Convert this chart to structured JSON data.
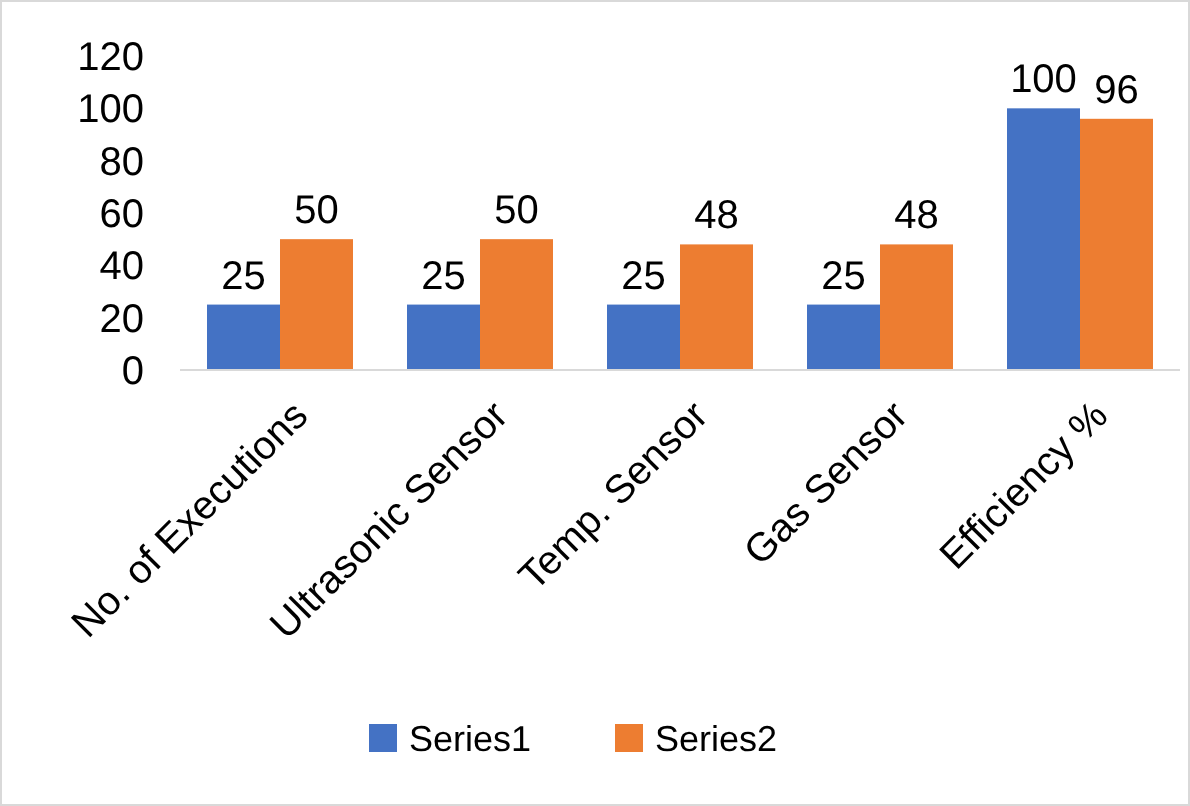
{
  "chart_data": {
    "type": "bar",
    "categories": [
      "No. of Executions",
      "Ultrasonic Sensor",
      "Temp. Sensor",
      "Gas Sensor",
      "Efficiency %"
    ],
    "series": [
      {
        "name": "Series1",
        "color": "#4472c4",
        "values": [
          25,
          25,
          25,
          25,
          100
        ]
      },
      {
        "name": "Series2",
        "color": "#ed7d31",
        "values": [
          50,
          50,
          48,
          48,
          96
        ]
      }
    ],
    "ylim": [
      0,
      120
    ],
    "yticks": [
      0,
      20,
      40,
      60,
      80,
      100,
      120
    ],
    "data_labels": true,
    "legend": "bottom",
    "grid": false
  }
}
